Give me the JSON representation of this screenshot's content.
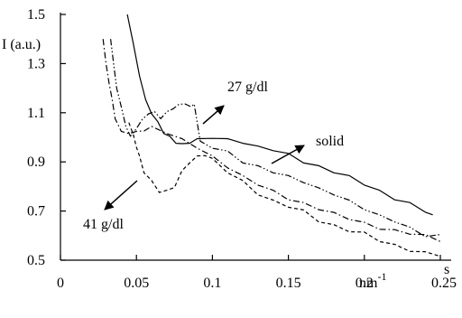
{
  "chart_data": {
    "type": "line",
    "ylabel": "I (a.u.)",
    "xlabel": "s",
    "x_unit": "nm",
    "x_unit_superscript": "-1",
    "xlim": [
      0,
      0.25
    ],
    "ylim": [
      0.5,
      1.5
    ],
    "x_ticks": [
      "0",
      "0.05",
      "0.1",
      "0.15",
      "0.2",
      "0.25"
    ],
    "y_ticks": [
      "0.5",
      "0.7",
      "0.9",
      "1.1",
      "1.3",
      "1.5"
    ],
    "grid": false,
    "series": [
      {
        "name": "solid",
        "style": "solid",
        "x": [
          0.044,
          0.048,
          0.052,
          0.056,
          0.06,
          0.064,
          0.068,
          0.072,
          0.076,
          0.08,
          0.085,
          0.09,
          0.1,
          0.11,
          0.12,
          0.13,
          0.14,
          0.15,
          0.16,
          0.17,
          0.18,
          0.19,
          0.2,
          0.21,
          0.22,
          0.23,
          0.24,
          0.245
        ],
        "y": [
          1.5,
          1.38,
          1.25,
          1.15,
          1.1,
          1.06,
          1.02,
          1.0,
          0.98,
          0.97,
          0.98,
          0.99,
          1.0,
          0.99,
          0.98,
          0.96,
          0.95,
          0.93,
          0.9,
          0.88,
          0.86,
          0.84,
          0.81,
          0.78,
          0.75,
          0.73,
          0.7,
          0.68
        ]
      },
      {
        "name": "27 g/dl",
        "style": "dash-dot-dot",
        "x": [
          0.033,
          0.035,
          0.037,
          0.04,
          0.043,
          0.046,
          0.05,
          0.054,
          0.058,
          0.062,
          0.066,
          0.07,
          0.074,
          0.078,
          0.082,
          0.086,
          0.088,
          0.092,
          0.1,
          0.11,
          0.12,
          0.13,
          0.14,
          0.15,
          0.16,
          0.17,
          0.18,
          0.19,
          0.2,
          0.21,
          0.22,
          0.23,
          0.24,
          0.25
        ],
        "y": [
          1.4,
          1.3,
          1.2,
          1.12,
          1.05,
          1.0,
          1.04,
          1.07,
          1.1,
          1.1,
          1.08,
          1.1,
          1.12,
          1.13,
          1.14,
          1.12,
          1.14,
          0.98,
          0.96,
          0.94,
          0.9,
          0.88,
          0.86,
          0.84,
          0.82,
          0.79,
          0.77,
          0.74,
          0.71,
          0.68,
          0.66,
          0.63,
          0.6,
          0.6
        ]
      },
      {
        "name": "",
        "style": "dash-dot",
        "x": [
          0.028,
          0.03,
          0.032,
          0.034,
          0.036,
          0.04,
          0.045,
          0.05,
          0.055,
          0.06,
          0.07,
          0.08,
          0.09,
          0.1,
          0.11,
          0.12,
          0.13,
          0.14,
          0.15,
          0.16,
          0.17,
          0.18,
          0.19,
          0.2,
          0.21,
          0.22,
          0.23,
          0.24,
          0.25
        ],
        "y": [
          1.4,
          1.3,
          1.22,
          1.15,
          1.08,
          1.02,
          1.02,
          1.02,
          1.03,
          1.04,
          1.02,
          0.99,
          0.96,
          0.92,
          0.88,
          0.84,
          0.81,
          0.78,
          0.75,
          0.73,
          0.71,
          0.69,
          0.67,
          0.65,
          0.63,
          0.62,
          0.61,
          0.6,
          0.58
        ]
      },
      {
        "name": "41 g/dl",
        "style": "dashed",
        "x": [
          0.045,
          0.048,
          0.05,
          0.052,
          0.055,
          0.06,
          0.065,
          0.07,
          0.075,
          0.08,
          0.085,
          0.09,
          0.095,
          0.1,
          0.11,
          0.12,
          0.13,
          0.14,
          0.15,
          0.16,
          0.17,
          0.18,
          0.19,
          0.2,
          0.21,
          0.22,
          0.23,
          0.24,
          0.25
        ],
        "y": [
          1.06,
          1.01,
          0.96,
          0.92,
          0.86,
          0.82,
          0.78,
          0.78,
          0.8,
          0.86,
          0.9,
          0.92,
          0.93,
          0.91,
          0.86,
          0.82,
          0.77,
          0.74,
          0.72,
          0.7,
          0.66,
          0.64,
          0.62,
          0.61,
          0.58,
          0.56,
          0.54,
          0.53,
          0.52
        ]
      }
    ],
    "annotations": [
      {
        "text": "27 g/dl",
        "points_to": "27 g/dl"
      },
      {
        "text": "solid",
        "points_to": "solid"
      },
      {
        "text": "41 g/dl",
        "points_to": "41 g/dl"
      }
    ]
  }
}
